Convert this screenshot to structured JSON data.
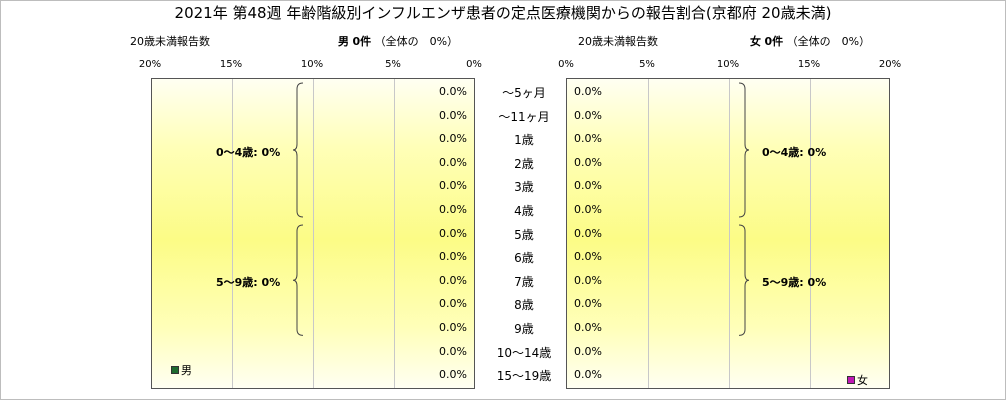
{
  "chart_data": {
    "type": "bar",
    "title": "2021年 第48週 年齢階級別インフルエンザ患者の定点医療機関からの報告割合(京都府 20歳未満)",
    "categories": [
      "～5ヶ月",
      "～11ヶ月",
      "1歳",
      "2歳",
      "3歳",
      "4歳",
      "5歳",
      "6歳",
      "7歳",
      "8歳",
      "9歳",
      "10～14歳",
      "15～19歳"
    ],
    "xlim": [
      0,
      20
    ],
    "ticks": [
      0,
      5,
      10,
      15,
      20
    ],
    "tick_labels": [
      "0%",
      "5%",
      "10%",
      "15%",
      "20%"
    ],
    "grid": true,
    "panels": [
      {
        "side": "left",
        "subtitle_left": "20歳未満報告数",
        "sex_label": "男",
        "count_label": "0件",
        "total_label": "（全体の　0%）",
        "legend_label": "男",
        "legend_color": "#1f6b2e",
        "values": [
          0,
          0,
          0,
          0,
          0,
          0,
          0,
          0,
          0,
          0,
          0,
          0,
          0
        ],
        "value_labels": [
          "0.0%",
          "0.0%",
          "0.0%",
          "0.0%",
          "0.0%",
          "0.0%",
          "0.0%",
          "0.0%",
          "0.0%",
          "0.0%",
          "0.0%",
          "0.0%",
          "0.0%"
        ],
        "groups": [
          {
            "label": "0～4歳: 0%",
            "from": 0,
            "to": 5
          },
          {
            "label": "5～9歳: 0%",
            "from": 6,
            "to": 10
          }
        ]
      },
      {
        "side": "right",
        "subtitle_left": "20歳未満報告数",
        "sex_label": "女",
        "count_label": "0件",
        "total_label": "（全体の　0%）",
        "legend_label": "女",
        "legend_color": "#c018b4",
        "values": [
          0,
          0,
          0,
          0,
          0,
          0,
          0,
          0,
          0,
          0,
          0,
          0,
          0
        ],
        "value_labels": [
          "0.0%",
          "0.0%",
          "0.0%",
          "0.0%",
          "0.0%",
          "0.0%",
          "0.0%",
          "0.0%",
          "0.0%",
          "0.0%",
          "0.0%",
          "0.0%",
          "0.0%"
        ],
        "groups": [
          {
            "label": "0～4歳: 0%",
            "from": 0,
            "to": 5
          },
          {
            "label": "5～9歳: 0%",
            "from": 6,
            "to": 10
          }
        ]
      }
    ]
  }
}
